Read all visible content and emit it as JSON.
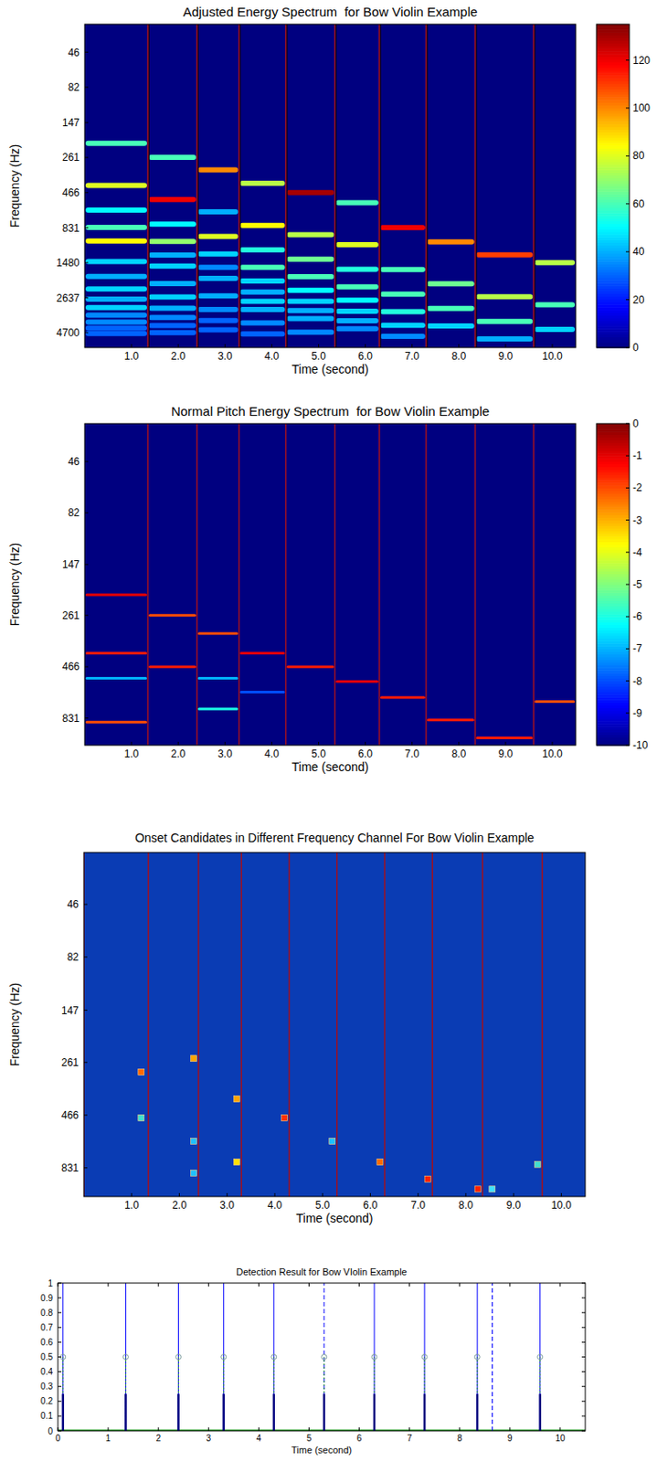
{
  "chart_data": [
    {
      "type": "heatmap",
      "title": "Adjusted Energy Spectrum  for Bow Violin Example",
      "x_label": "Time (second)",
      "y_label": "Frequency (Hz)",
      "xlim": [
        0,
        10.5
      ],
      "xticks": [
        {
          "value": 1,
          "label": "1.0"
        },
        {
          "value": 2,
          "label": "2.0"
        },
        {
          "value": 3,
          "label": "3.0"
        },
        {
          "value": 4,
          "label": "4.0"
        },
        {
          "value": 5,
          "label": "5.0"
        },
        {
          "value": 6,
          "label": "6.0"
        },
        {
          "value": 7,
          "label": "7.0"
        },
        {
          "value": 8,
          "label": "8.0"
        },
        {
          "value": 9,
          "label": "9.0"
        },
        {
          "value": 10,
          "label": "10.0"
        }
      ],
      "ylim": [
        29,
        6000
      ],
      "yticks": [
        46,
        82,
        147,
        261,
        466,
        831,
        1480,
        2637,
        4700
      ],
      "log": "y",
      "boundaries": [
        1.35,
        2.4,
        3.3,
        4.3,
        5.35,
        6.3,
        7.3,
        8.35,
        9.6
      ],
      "segments": [
        {
          "t0": 0,
          "t1": 1.35,
          "peaks": [
            [
              207,
              60
            ],
            [
              414,
              80
            ],
            [
              621,
              50
            ],
            [
              828,
              60
            ],
            [
              1035,
              85
            ],
            [
              1450,
              45
            ],
            [
              1860,
              40
            ],
            [
              2280,
              45
            ],
            [
              2700,
              40
            ],
            [
              3100,
              45
            ],
            [
              3520,
              35
            ],
            [
              3940,
              35
            ],
            [
              4350,
              30
            ],
            [
              4760,
              30
            ]
          ]
        },
        {
          "t0": 1.35,
          "t1": 2.4,
          "peaks": [
            [
              261,
              60
            ],
            [
              522,
              120
            ],
            [
              783,
              50
            ],
            [
              1044,
              70
            ],
            [
              1305,
              40
            ],
            [
              1566,
              45
            ],
            [
              2088,
              40
            ],
            [
              2610,
              45
            ],
            [
              3132,
              40
            ],
            [
              3654,
              35
            ],
            [
              4176,
              30
            ],
            [
              4700,
              30
            ]
          ]
        },
        {
          "t0": 2.4,
          "t1": 3.3,
          "peaks": [
            [
              320,
              100
            ],
            [
              640,
              40
            ],
            [
              960,
              80
            ],
            [
              1280,
              45
            ],
            [
              1600,
              35
            ],
            [
              1920,
              40
            ],
            [
              2560,
              40
            ],
            [
              3200,
              35
            ],
            [
              3840,
              30
            ],
            [
              4480,
              30
            ]
          ]
        },
        {
          "t0": 3.3,
          "t1": 4.3,
          "peaks": [
            [
              400,
              75
            ],
            [
              800,
              85
            ],
            [
              1200,
              55
            ],
            [
              1600,
              60
            ],
            [
              2000,
              45
            ],
            [
              2400,
              40
            ],
            [
              2800,
              45
            ],
            [
              3200,
              40
            ],
            [
              4000,
              35
            ],
            [
              4800,
              30
            ]
          ]
        },
        {
          "t0": 4.3,
          "t1": 5.35,
          "peaks": [
            [
              466,
              130
            ],
            [
              932,
              75
            ],
            [
              1398,
              65
            ],
            [
              1864,
              60
            ],
            [
              2330,
              50
            ],
            [
              2796,
              45
            ],
            [
              3262,
              40
            ],
            [
              3728,
              40
            ],
            [
              4660,
              35
            ]
          ]
        },
        {
          "t0": 5.35,
          "t1": 6.3,
          "peaks": [
            [
              550,
              60
            ],
            [
              1100,
              80
            ],
            [
              1650,
              55
            ],
            [
              2200,
              60
            ],
            [
              2750,
              50
            ],
            [
              3300,
              45
            ],
            [
              3850,
              40
            ],
            [
              4400,
              35
            ]
          ]
        },
        {
          "t0": 6.3,
          "t1": 7.3,
          "peaks": [
            [
              830,
              120
            ],
            [
              1660,
              60
            ],
            [
              2490,
              60
            ],
            [
              3320,
              55
            ],
            [
              4150,
              45
            ],
            [
              4980,
              35
            ]
          ]
        },
        {
          "t0": 7.3,
          "t1": 8.35,
          "peaks": [
            [
              1050,
              100
            ],
            [
              2100,
              65
            ],
            [
              3150,
              60
            ],
            [
              4200,
              45
            ]
          ]
        },
        {
          "t0": 8.35,
          "t1": 9.6,
          "peaks": [
            [
              1300,
              110
            ],
            [
              2600,
              75
            ],
            [
              3900,
              60
            ],
            [
              5200,
              40
            ]
          ]
        },
        {
          "t0": 9.6,
          "t1": 10.5,
          "peaks": [
            [
              1480,
              75
            ],
            [
              2960,
              60
            ],
            [
              4440,
              45
            ]
          ]
        }
      ],
      "colorbar_range": [
        0,
        135
      ],
      "colorbar_ticks": [
        0,
        20,
        40,
        60,
        80,
        100,
        120
      ]
    },
    {
      "type": "heatmap",
      "title": "Normal Pitch Energy Spectrum  for Bow Violin Example",
      "x_label": "Time (second)",
      "y_label": "Frequency (Hz)",
      "xlim": [
        0,
        10.5
      ],
      "xticks": [
        {
          "value": 1,
          "label": "1.0"
        },
        {
          "value": 2,
          "label": "2.0"
        },
        {
          "value": 3,
          "label": "3.0"
        },
        {
          "value": 4,
          "label": "4.0"
        },
        {
          "value": 5,
          "label": "5.0"
        },
        {
          "value": 6,
          "label": "6.0"
        },
        {
          "value": 7,
          "label": "7.0"
        },
        {
          "value": 8,
          "label": "8.0"
        },
        {
          "value": 9,
          "label": "9.0"
        },
        {
          "value": 10,
          "label": "10.0"
        }
      ],
      "ylim": [
        30,
        1130
      ],
      "yticks": [
        46,
        82,
        147,
        261,
        466,
        831
      ],
      "log": "y",
      "boundaries": [
        1.35,
        2.4,
        3.3,
        4.3,
        5.35,
        6.3,
        7.3,
        8.35,
        9.6
      ],
      "segments": [
        {
          "t0": 0,
          "t1": 1.35,
          "peaks": [
            [
              207,
              -1
            ],
            [
              400,
              -1.5
            ],
            [
              530,
              -7
            ],
            [
              870,
              -2
            ]
          ]
        },
        {
          "t0": 1.35,
          "t1": 2.4,
          "peaks": [
            [
              261,
              -2
            ],
            [
              466,
              -1.5
            ]
          ]
        },
        {
          "t0": 2.4,
          "t1": 3.3,
          "peaks": [
            [
              320,
              -2
            ],
            [
              530,
              -7
            ],
            [
              750,
              -6
            ]
          ]
        },
        {
          "t0": 3.3,
          "t1": 4.3,
          "peaks": [
            [
              400,
              -1
            ],
            [
              620,
              -8
            ]
          ]
        },
        {
          "t0": 4.3,
          "t1": 5.35,
          "peaks": [
            [
              466,
              -1.5
            ]
          ]
        },
        {
          "t0": 5.35,
          "t1": 6.3,
          "peaks": [
            [
              550,
              -1
            ]
          ]
        },
        {
          "t0": 6.3,
          "t1": 7.3,
          "peaks": [
            [
              660,
              -1.5
            ]
          ]
        },
        {
          "t0": 7.3,
          "t1": 8.35,
          "peaks": [
            [
              850,
              -1.5
            ]
          ]
        },
        {
          "t0": 8.35,
          "t1": 9.6,
          "peaks": [
            [
              1040,
              -1.5
            ]
          ]
        },
        {
          "t0": 9.6,
          "t1": 10.5,
          "peaks": [
            [
              690,
              -2
            ]
          ]
        }
      ],
      "colorbar_range": [
        -10,
        0
      ],
      "colorbar_ticks": [
        -10,
        -9,
        -8,
        -7,
        -6,
        -5,
        -4,
        -3,
        -2,
        -1,
        0
      ]
    },
    {
      "type": "scatter",
      "title": "Onset Candidates in Different Frequency Channel For Bow Violin Example",
      "x_label": "Time (second)",
      "y_label": "Frequency (Hz)",
      "xlim": [
        0,
        10.5
      ],
      "xticks": [
        {
          "value": 1,
          "label": "1.0"
        },
        {
          "value": 2,
          "label": "2.0"
        },
        {
          "value": 3,
          "label": "3.0"
        },
        {
          "value": 4,
          "label": "4.0"
        },
        {
          "value": 5,
          "label": "5.0"
        },
        {
          "value": 6,
          "label": "6.0"
        },
        {
          "value": 7,
          "label": "7.0"
        },
        {
          "value": 8,
          "label": "8.0"
        },
        {
          "value": 9,
          "label": "9.0"
        },
        {
          "value": 10,
          "label": "10.0"
        }
      ],
      "ylim": [
        26,
        1140
      ],
      "yticks": [
        46,
        82,
        147,
        261,
        466,
        831
      ],
      "log": "y",
      "boundaries": [
        0,
        1.35,
        2.4,
        3.3,
        4.3,
        5.3,
        6.3,
        7.3,
        8.35,
        9.6
      ],
      "x": [
        1.2,
        1.2,
        2.3,
        2.3,
        2.3,
        3.2,
        3.2,
        4.2,
        5.2,
        6.2,
        7.2,
        8.25,
        8.55,
        9.5
      ],
      "values": [
        290,
        480,
        250,
        620,
        880,
        390,
        780,
        480,
        620,
        780,
        940,
        1050,
        1050,
        800
      ],
      "colors": [
        "#ff6a00",
        "#40e0d0",
        "#ffa500",
        "#20c0ff",
        "#20c0ff",
        "#ffa500",
        "#ffe000",
        "#ff3000",
        "#20c0ff",
        "#ff6a00",
        "#ff2000",
        "#ff2000",
        "#40e0ff",
        "#40e0d0"
      ],
      "marker": "square"
    },
    {
      "type": "stem",
      "title": "Detection Result for Bow VIolin Example",
      "x_label": "Time (second)",
      "xlim": [
        0,
        10.5
      ],
      "xticks": [
        0,
        1,
        2,
        3,
        4,
        5,
        6,
        7,
        8,
        9,
        10
      ],
      "ylim": [
        0,
        1
      ],
      "yticks": [
        0,
        0.1,
        0.2,
        0.3,
        0.4,
        0.5,
        0.6,
        0.7,
        0.8,
        0.9,
        1
      ],
      "series": [
        {
          "x": [
            0.1,
            1.35,
            2.4,
            3.3,
            4.3,
            6.3,
            7.3,
            8.35,
            9.6
          ],
          "values": [
            1,
            1,
            1,
            1,
            1,
            1,
            1,
            1,
            1
          ],
          "color": "#0000ff",
          "line_style": "solid"
        },
        {
          "x": [
            5.3,
            8.65
          ],
          "values": [
            1,
            1
          ],
          "color": "#0000ff",
          "line_style": "dashed"
        },
        {
          "x": [
            0.1,
            1.35,
            2.4,
            3.3,
            4.3,
            5.3,
            6.3,
            7.3,
            8.35,
            9.6
          ],
          "values": [
            0.5,
            0.5,
            0.5,
            0.5,
            0.5,
            0.5,
            0.5,
            0.5,
            0.5,
            0.5
          ],
          "color": "#2ca02c",
          "line_style": "dotted",
          "marker": "circle"
        },
        {
          "x": [
            0.1,
            1.35,
            2.4,
            3.3,
            4.3,
            5.3,
            6.3,
            7.3,
            8.35,
            9.6
          ],
          "values": [
            0.25,
            0.25,
            0.25,
            0.25,
            0.25,
            0.25,
            0.25,
            0.25,
            0.25,
            0.25
          ],
          "color": "#000080",
          "line_style": "solid"
        }
      ]
    }
  ]
}
